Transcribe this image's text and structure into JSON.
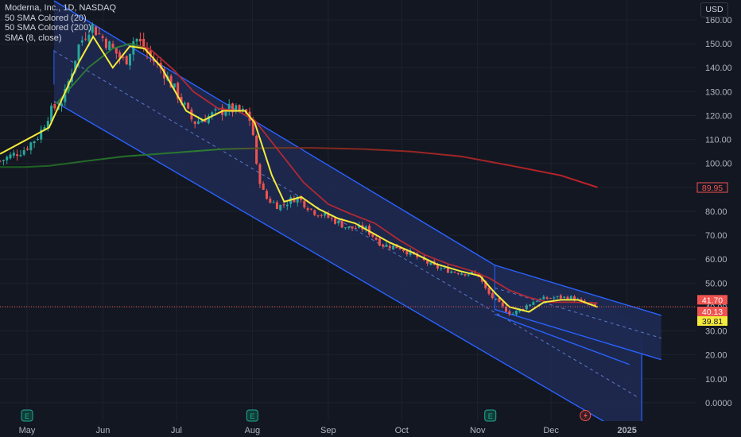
{
  "legend": {
    "symbol": "Moderna, Inc., 1D, NASDAQ",
    "ind1": "50 SMA Colored (20)",
    "ind2": "50 SMA Colored (200)",
    "ind3": "SMA (8, close)"
  },
  "currency": "USD",
  "colors": {
    "background": "#131722",
    "grid": "#1e222d",
    "up": "#26a69a",
    "down": "#ef5350",
    "sma20": "#b22833",
    "sma200": "#c2212b",
    "sma8": "#f5eb3b",
    "channel_fill": "#1e2a52",
    "channel_line": "#2962ff",
    "price_line": "#ef5350"
  },
  "chart_data": {
    "type": "candlestick",
    "y_ticks": [
      "160.00",
      "150.00",
      "140.00",
      "130.00",
      "120.00",
      "110.00",
      "100.00",
      "90.00",
      "80.00",
      "70.00",
      "60.00",
      "50.00",
      "40.00",
      "30.00",
      "20.00",
      "10.00",
      "0.0000"
    ],
    "x_ticks": [
      "May",
      "Jun",
      "Jul",
      "Aug",
      "Sep",
      "Oct",
      "Nov",
      "Dec",
      "2025"
    ],
    "ylim": [
      -3,
      163
    ],
    "price_labels": [
      {
        "text": "89.95",
        "value": 89.95,
        "style": "outline"
      },
      {
        "text": "41.70",
        "value": 41.7,
        "style": "red"
      },
      {
        "text": "40.13",
        "value": 40.13,
        "style": "red"
      },
      {
        "text": "39.81",
        "value": 39.81,
        "style": "yellow"
      }
    ],
    "current_price": 40.13,
    "earnings_markers": [
      "May",
      "Aug",
      "Nov"
    ],
    "close_path": [
      [
        "2024-04-20",
        101
      ],
      [
        "2024-04-30",
        106
      ],
      [
        "2024-05-06",
        112
      ],
      [
        "2024-05-10",
        121
      ],
      [
        "2024-05-16",
        127
      ],
      [
        "2024-05-22",
        149
      ],
      [
        "2024-05-27",
        158
      ],
      [
        "2024-06-03",
        150
      ],
      [
        "2024-06-10",
        142
      ],
      [
        "2024-06-14",
        153
      ],
      [
        "2024-06-20",
        145
      ],
      [
        "2024-06-26",
        138
      ],
      [
        "2024-07-02",
        128
      ],
      [
        "2024-07-08",
        117
      ],
      [
        "2024-07-15",
        120
      ],
      [
        "2024-07-22",
        123
      ],
      [
        "2024-07-29",
        121
      ],
      [
        "2024-08-01",
        117
      ],
      [
        "2024-08-02",
        101
      ],
      [
        "2024-08-06",
        86
      ],
      [
        "2024-08-12",
        82
      ],
      [
        "2024-08-19",
        86
      ],
      [
        "2024-08-26",
        80
      ],
      [
        "2024-09-02",
        77
      ],
      [
        "2024-09-09",
        73
      ],
      [
        "2024-09-16",
        73
      ],
      [
        "2024-09-23",
        66
      ],
      [
        "2024-09-30",
        65
      ],
      [
        "2024-10-07",
        61
      ],
      [
        "2024-10-14",
        57
      ],
      [
        "2024-10-21",
        55
      ],
      [
        "2024-10-28",
        54
      ],
      [
        "2024-11-01",
        54
      ],
      [
        "2024-11-05",
        46
      ],
      [
        "2024-11-11",
        40
      ],
      [
        "2024-11-15",
        37
      ],
      [
        "2024-11-20",
        40
      ],
      [
        "2024-11-25",
        43
      ],
      [
        "2024-12-02",
        44
      ],
      [
        "2024-12-09",
        44
      ],
      [
        "2024-12-16",
        41
      ],
      [
        "2024-12-20",
        40.13
      ]
    ],
    "series": [
      {
        "name": "SMA (8, close)",
        "points": [
          [
            "2024-04-20",
            104
          ],
          [
            "2024-05-10",
            115
          ],
          [
            "2024-05-22",
            142
          ],
          [
            "2024-05-28",
            153
          ],
          [
            "2024-06-05",
            140
          ],
          [
            "2024-06-12",
            149
          ],
          [
            "2024-06-18",
            148
          ],
          [
            "2024-06-25",
            140
          ],
          [
            "2024-07-05",
            122
          ],
          [
            "2024-07-12",
            118
          ],
          [
            "2024-07-20",
            122
          ],
          [
            "2024-07-29",
            122
          ],
          [
            "2024-08-02",
            117
          ],
          [
            "2024-08-09",
            95
          ],
          [
            "2024-08-14",
            84
          ],
          [
            "2024-08-21",
            86
          ],
          [
            "2024-08-28",
            81
          ],
          [
            "2024-09-05",
            77
          ],
          [
            "2024-09-12",
            75
          ],
          [
            "2024-09-19",
            71
          ],
          [
            "2024-09-26",
            67
          ],
          [
            "2024-10-05",
            63
          ],
          [
            "2024-10-15",
            58
          ],
          [
            "2024-10-25",
            55
          ],
          [
            "2024-11-02",
            53
          ],
          [
            "2024-11-08",
            46
          ],
          [
            "2024-11-14",
            40
          ],
          [
            "2024-11-22",
            38
          ],
          [
            "2024-11-28",
            42
          ],
          [
            "2024-12-05",
            43
          ],
          [
            "2024-12-12",
            43
          ],
          [
            "2024-12-20",
            40
          ]
        ]
      },
      {
        "name": "50 SMA Colored (20)",
        "points": [
          [
            "2024-05-13",
            125
          ],
          [
            "2024-05-26",
            140
          ],
          [
            "2024-06-05",
            148
          ],
          [
            "2024-06-12",
            150
          ],
          [
            "2024-06-20",
            148
          ],
          [
            "2024-06-30",
            139
          ],
          [
            "2024-07-08",
            130
          ],
          [
            "2024-07-18",
            123
          ],
          [
            "2024-07-26",
            122
          ],
          [
            "2024-08-02",
            118
          ],
          [
            "2024-08-12",
            105
          ],
          [
            "2024-08-22",
            92
          ],
          [
            "2024-09-01",
            83
          ],
          [
            "2024-09-10",
            79
          ],
          [
            "2024-09-20",
            75
          ],
          [
            "2024-09-30",
            68
          ],
          [
            "2024-10-10",
            62
          ],
          [
            "2024-10-20",
            58
          ],
          [
            "2024-10-30",
            55
          ],
          [
            "2024-11-06",
            52
          ],
          [
            "2024-11-14",
            47
          ],
          [
            "2024-11-22",
            44
          ],
          [
            "2024-11-30",
            42
          ],
          [
            "2024-12-10",
            42
          ],
          [
            "2024-12-20",
            41.7
          ]
        ]
      },
      {
        "name": "50 SMA Colored (200)",
        "points": [
          [
            "2024-04-20",
            98.5
          ],
          [
            "2024-04-30",
            98.5
          ],
          [
            "2024-05-10",
            99
          ],
          [
            "2024-05-25",
            101
          ],
          [
            "2024-06-10",
            103
          ],
          [
            "2024-06-30",
            104.5
          ],
          [
            "2024-07-20",
            106
          ],
          [
            "2024-08-10",
            106.5
          ],
          [
            "2024-08-26",
            106.5
          ],
          [
            "2024-09-15",
            106
          ],
          [
            "2024-10-05",
            105
          ],
          [
            "2024-10-25",
            103
          ],
          [
            "2024-11-15",
            99
          ],
          [
            "2024-12-05",
            95
          ],
          [
            "2024-12-20",
            90
          ]
        ]
      }
    ],
    "channels": [
      {
        "upper": [
          [
            "2024-05-12",
            168
          ],
          [
            "2024-11-08",
            57.5
          ]
        ],
        "lower": [
          [
            "2024-05-12",
            126
          ],
          [
            "2025-01-02",
            -14
          ]
        ],
        "mid_dashed": [
          [
            "2024-05-12",
            147
          ],
          [
            "2025-01-06",
            2
          ]
        ],
        "extend_to": "2025-01-07"
      },
      {
        "upper": [
          [
            "2024-11-08",
            57.5
          ],
          [
            "2025-01-15",
            36.5
          ]
        ],
        "lower": [
          [
            "2024-11-08",
            39
          ],
          [
            "2025-01-15",
            18
          ]
        ],
        "mid_dashed": [
          [
            "2024-11-08",
            48
          ],
          [
            "2025-01-15",
            27
          ]
        ]
      }
    ]
  }
}
